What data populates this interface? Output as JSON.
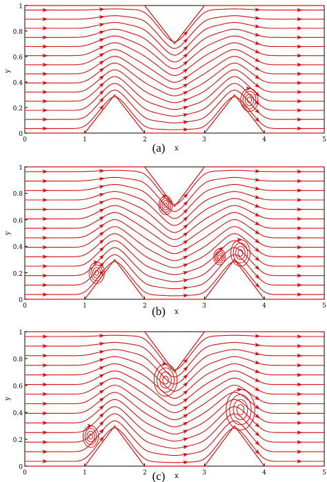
{
  "colors": {
    "stream": "#d01010",
    "axis": "#000000",
    "background": "#ffffff"
  },
  "axes": {
    "x_label": "x",
    "y_label": "y",
    "x_ticks": [
      "0",
      "1",
      "2",
      "3",
      "4",
      "5"
    ],
    "y_ticks": [
      "0",
      "0.2",
      "0.4",
      "0.6",
      "0.8",
      "1"
    ],
    "xlim": [
      0,
      5
    ],
    "ylim": [
      0,
      1
    ]
  },
  "panels": [
    {
      "caption": "(a)",
      "eddies": [
        {
          "cx": 3.75,
          "cy": 0.26,
          "r": 0.09,
          "cw": true
        }
      ]
    },
    {
      "caption": "(b)",
      "eddies": [
        {
          "cx": 2.35,
          "cy": 0.71,
          "r": 0.07,
          "cw": true
        },
        {
          "cx": 1.2,
          "cy": 0.2,
          "r": 0.08,
          "cw": true
        },
        {
          "cx": 3.6,
          "cy": 0.35,
          "r": 0.1,
          "cw": true
        },
        {
          "cx": 3.25,
          "cy": 0.32,
          "r": 0.06,
          "cw": false
        }
      ]
    },
    {
      "caption": "(c)",
      "eddies": [
        {
          "cx": 2.35,
          "cy": 0.64,
          "r": 0.12,
          "cw": true
        },
        {
          "cx": 1.1,
          "cy": 0.22,
          "r": 0.08,
          "cw": true
        },
        {
          "cx": 3.6,
          "cy": 0.42,
          "r": 0.15,
          "cw": true
        }
      ]
    }
  ],
  "geometry": {
    "bottom_wall": [
      [
        0,
        0
      ],
      [
        1,
        0
      ],
      [
        1.5,
        0.3
      ],
      [
        2,
        0
      ],
      [
        3,
        0
      ],
      [
        3.5,
        0.3
      ],
      [
        4,
        0
      ],
      [
        5,
        0
      ]
    ],
    "top_wall": [
      [
        0,
        1
      ],
      [
        2,
        1
      ],
      [
        2.5,
        0.7
      ],
      [
        3,
        1
      ],
      [
        5,
        1
      ]
    ]
  }
}
